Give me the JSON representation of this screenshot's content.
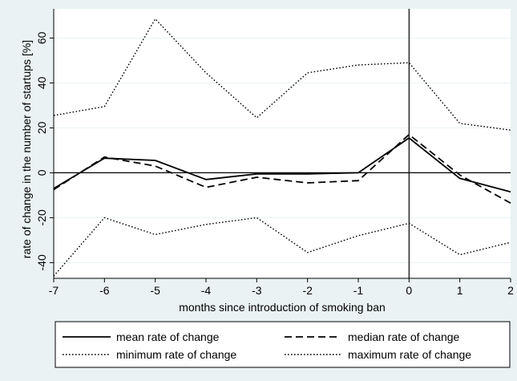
{
  "chart_data": {
    "type": "line",
    "xlabel": "months since introduction of smoking ban",
    "ylabel": "rate of change in the number of startups [%]",
    "x": [
      -7,
      -6,
      -5,
      -4,
      -3,
      -2,
      -1,
      0,
      1,
      2
    ],
    "xlim": [
      -7,
      2
    ],
    "ylim": [
      -47,
      73
    ],
    "yticks": [
      -40,
      -20,
      0,
      20,
      40,
      60
    ],
    "reference_lines": {
      "y": 0,
      "x": 0
    },
    "grid": true,
    "legend_placement": "bottom",
    "series": [
      {
        "name": "mean rate of change",
        "style": "solid",
        "values": [
          -7,
          6.5,
          5.5,
          -3,
          -0.5,
          -0.5,
          0,
          15.5,
          -2.5,
          -8.5
        ]
      },
      {
        "name": "median rate of change",
        "style": "dashed",
        "values": [
          -7.5,
          7,
          3,
          -6.5,
          -2,
          -4.5,
          -3.5,
          17,
          -1,
          -13.5
        ]
      },
      {
        "name": "minimum rate of change",
        "style": "dotted",
        "values": [
          -46,
          -20,
          -27.5,
          -23,
          -20,
          -35.5,
          -28,
          -22.5,
          -36.5,
          -31
        ]
      },
      {
        "name": "maximum rate of change",
        "style": "dotted",
        "values": [
          25.5,
          29.5,
          68.5,
          44.5,
          24.5,
          44.5,
          48,
          49,
          22,
          19
        ]
      }
    ],
    "colors": {
      "background": "#eaf2f3",
      "plot_background": "#ffffff",
      "line": "#000000",
      "grid": "#eaf2f3"
    }
  }
}
